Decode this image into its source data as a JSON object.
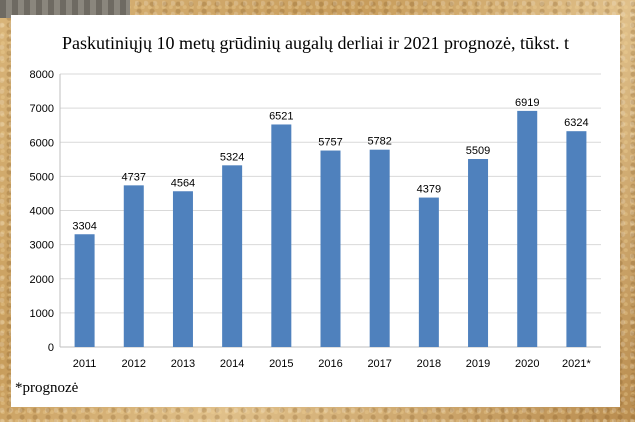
{
  "chart_data": {
    "type": "bar",
    "title": "Paskutiniųjų 10 metų grūdinių augalų derliai ir 2021 prognozė, tūkst. t",
    "categories": [
      "2011",
      "2012",
      "2013",
      "2014",
      "2015",
      "2016",
      "2017",
      "2018",
      "2019",
      "2020",
      "2021*"
    ],
    "values": [
      3304,
      4737,
      4564,
      5324,
      6521,
      5757,
      5782,
      4379,
      5509,
      6919,
      6324
    ],
    "ylim": [
      0,
      8000
    ],
    "yticks": [
      "0",
      "1000",
      "2000",
      "3000",
      "4000",
      "5000",
      "6000",
      "7000",
      "8000"
    ],
    "grid": true,
    "bar_color": "#4f81bd",
    "footnote": "*prognozė"
  }
}
